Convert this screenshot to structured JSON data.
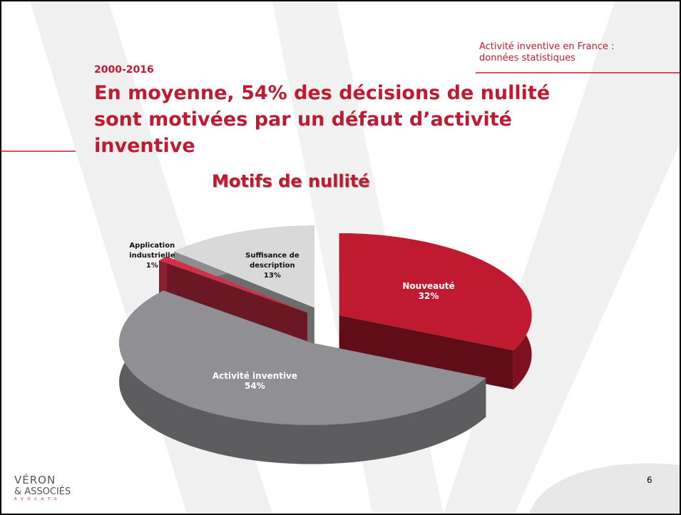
{
  "header_lines": [
    "Activité inventive en France :",
    "données statistiques"
  ],
  "period": "2000-2016",
  "headline_lines": [
    "En moyenne, 54% des décisions de nullité",
    "sont motivées par un défaut d’activité",
    "inventive"
  ],
  "logo": {
    "name": "VÉRON",
    "partners": "& ASSOCIÉS",
    "tagline": "AVOCATS"
  },
  "page_number": "6",
  "chart_data": {
    "type": "pie3d",
    "title": "Motifs de nullité",
    "categories": [
      "Nouveauté",
      "Activité inventive",
      "Application industrielle",
      "Suffisance de description"
    ],
    "values": [
      32,
      54,
      1,
      13
    ],
    "value_labels": [
      "32%",
      "54%",
      "1%",
      "13%"
    ],
    "colors": [
      "#c01a30",
      "#8f8f94",
      "#d23048",
      "#d9d9d9"
    ]
  }
}
